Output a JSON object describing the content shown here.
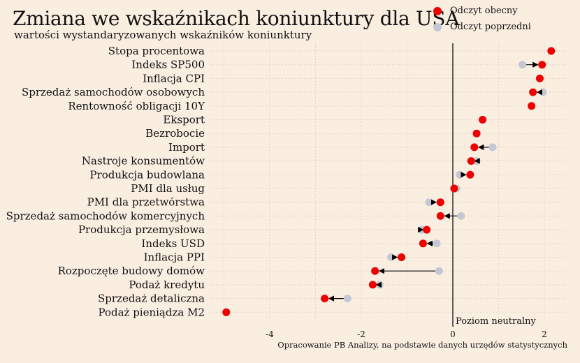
{
  "chart_data": {
    "type": "dot",
    "title": "Zmiana we wskaźnikach koniunktury dla USA",
    "subtitle": "wartości wystandaryzowanych wskaźników koniunktury",
    "xlim": [
      -5,
      2.3
    ],
    "x_ticks": [
      -4,
      -2,
      0,
      2
    ],
    "grid": true,
    "legend_position": "top-right",
    "neutral_line": {
      "x": 0,
      "label": "Poziom neutralny"
    },
    "source": "Opracowanie PB Analizy, na podstawie danych urzędów statystycznych",
    "series": [
      {
        "name": "Odczyt obecny",
        "color": "#ee0000"
      },
      {
        "name": "Odczyt poprzedni",
        "color": "#c4c8d4"
      }
    ],
    "categories": [
      "Stopa procentowa",
      "Indeks SP500",
      "Inflacja CPI",
      "Sprzedaż samochodów osobowych",
      "Rentowność obligacji 10Y",
      "Eksport",
      "Bezrobocie",
      "Import",
      "Nastroje konsumentów",
      "Produkcja budowlana",
      "PMI dla usług",
      "PMI dla przetwórstwa",
      "Sprzedaż samochodów komercyjnych",
      "Produkcja przemysłowa",
      "Indeks USD",
      "Inflacja PPI",
      "Rozpoczęte budowy domów",
      "Podaż kredytu",
      "Sprzedaż detaliczna",
      "Podaż pieniądza M2"
    ],
    "current": [
      2.15,
      1.95,
      1.9,
      1.75,
      1.72,
      0.65,
      0.52,
      0.47,
      0.4,
      0.38,
      0.03,
      -0.27,
      -0.27,
      -0.57,
      -0.65,
      -1.12,
      -1.7,
      -1.75,
      -2.8,
      -4.95
    ],
    "previous": [
      2.15,
      1.52,
      1.9,
      1.97,
      1.72,
      0.65,
      0.52,
      0.87,
      0.52,
      0.15,
      0.08,
      -0.52,
      0.18,
      -0.68,
      -0.35,
      -1.35,
      -0.3,
      -1.6,
      -2.3,
      -4.95
    ]
  }
}
